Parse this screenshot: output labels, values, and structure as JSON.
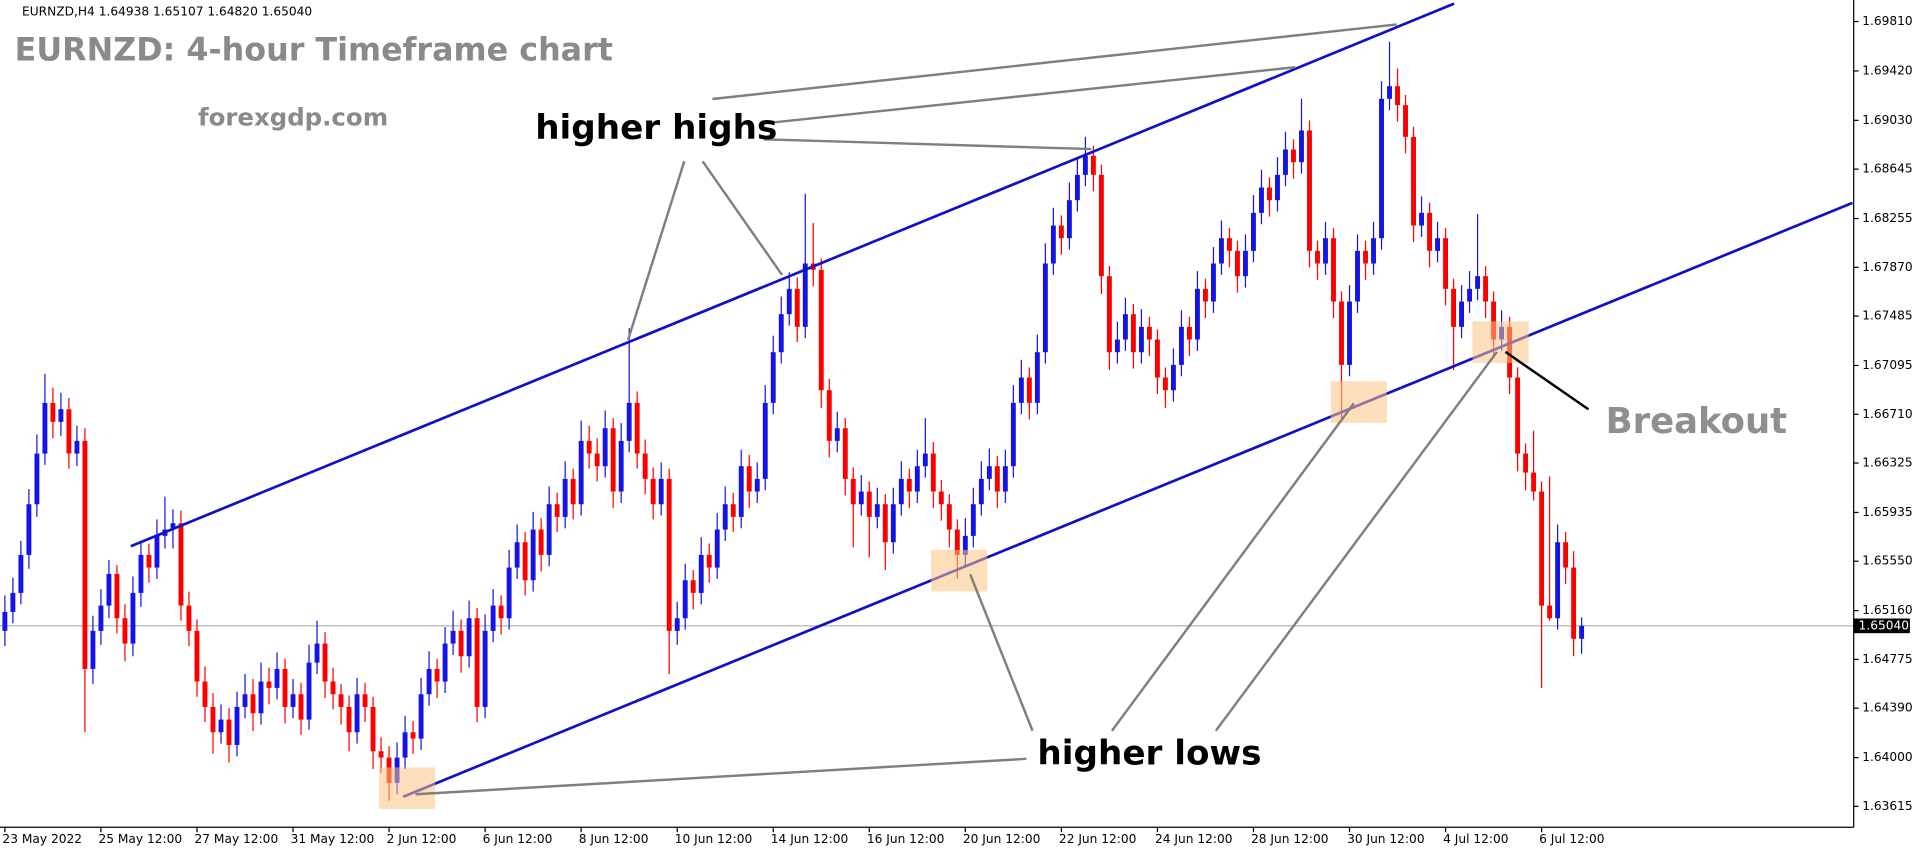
{
  "chart_data": {
    "type": "candlestick",
    "symbol_info": "EURNZD,H4 1.64938 1.65107 1.64820 1.65040",
    "title": "EURNZD: 4-hour Timeframe chart",
    "subtitle": "forexgdp.com",
    "annotations": [
      "higher highs",
      "higher lows",
      "Breakout"
    ],
    "up_color": "#1414e6",
    "down_color": "#ff0000",
    "grid": false,
    "ylim": [
      1.6345,
      1.6998
    ],
    "yticks": [
      {
        "value": 1.6981,
        "label": "1.69810"
      },
      {
        "value": 1.6942,
        "label": "1.69420"
      },
      {
        "value": 1.6903,
        "label": "1.69030"
      },
      1.68645,
      1.68255,
      {
        "value": 1.6787,
        "label": "1.67870"
      },
      1.67485,
      1.67095,
      {
        "value": 1.6671,
        "label": "1.66710"
      },
      1.66325,
      1.65935,
      {
        "value": 1.6555,
        "label": "1.65550"
      },
      {
        "value": 1.6516,
        "label": "1.65160"
      },
      1.64775,
      {
        "value": 1.6439,
        "label": "1.64390"
      },
      {
        "value": 1.64,
        "label": "1.64000"
      },
      1.63615
    ],
    "last_price": {
      "value": 1.6504,
      "label": "1.65040"
    },
    "categories": [
      "23 May 2022",
      null,
      null,
      null,
      null,
      null,
      null,
      null,
      null,
      null,
      null,
      null,
      "25 May 12:00",
      null,
      null,
      null,
      null,
      null,
      null,
      null,
      null,
      null,
      null,
      null,
      "27 May 12:00",
      null,
      null,
      null,
      null,
      null,
      null,
      null,
      null,
      null,
      null,
      null,
      "31 May 12:00",
      null,
      null,
      null,
      null,
      null,
      null,
      null,
      null,
      null,
      null,
      null,
      "2 Jun 12:00",
      null,
      null,
      null,
      null,
      null,
      null,
      null,
      null,
      null,
      null,
      null,
      "6 Jun 12:00",
      null,
      null,
      null,
      null,
      null,
      null,
      null,
      null,
      null,
      null,
      null,
      "8 Jun 12:00",
      null,
      null,
      null,
      null,
      null,
      null,
      null,
      null,
      null,
      null,
      null,
      "10 Jun 12:00",
      null,
      null,
      null,
      null,
      null,
      null,
      null,
      null,
      null,
      null,
      null,
      "14 Jun 12:00",
      null,
      null,
      null,
      null,
      null,
      null,
      null,
      null,
      null,
      null,
      null,
      "16 Jun 12:00",
      null,
      null,
      null,
      null,
      null,
      null,
      null,
      null,
      null,
      null,
      null,
      "20 Jun 12:00",
      null,
      null,
      null,
      null,
      null,
      null,
      null,
      null,
      null,
      null,
      null,
      "22 Jun 12:00",
      null,
      null,
      null,
      null,
      null,
      null,
      null,
      null,
      null,
      null,
      null,
      "24 Jun 12:00",
      null,
      null,
      null,
      null,
      null,
      null,
      null,
      null,
      null,
      null,
      null,
      "28 Jun 12:00",
      null,
      null,
      null,
      null,
      null,
      null,
      null,
      null,
      null,
      null,
      null,
      "30 Jun 12:00",
      null,
      null,
      null,
      null,
      null,
      null,
      null,
      null,
      null,
      null,
      null,
      "4 Jul 12:00",
      null,
      null,
      null,
      null,
      null,
      null,
      null,
      null,
      null,
      null,
      null,
      "6 Jul 12:00",
      null,
      null,
      null,
      null,
      null
    ],
    "ohlc": [
      [
        1.65,
        1.6528,
        1.6488,
        1.6515
      ],
      [
        1.6515,
        1.6542,
        1.6506,
        1.653
      ],
      [
        1.653,
        1.6571,
        1.6521,
        1.656
      ],
      [
        1.656,
        1.6612,
        1.6549,
        1.66
      ],
      [
        1.66,
        1.6655,
        1.659,
        1.664
      ],
      [
        1.664,
        1.6703,
        1.6631,
        1.668
      ],
      [
        1.668,
        1.6692,
        1.6652,
        1.6665
      ],
      [
        1.6665,
        1.6688,
        1.6654,
        1.6675
      ],
      [
        1.6675,
        1.6684,
        1.6628,
        1.664
      ],
      [
        1.664,
        1.6662,
        1.663,
        1.665
      ],
      [
        1.665,
        1.666,
        1.642,
        1.647
      ],
      [
        1.647,
        1.6512,
        1.6458,
        1.65
      ],
      [
        1.65,
        1.6533,
        1.6489,
        1.652
      ],
      [
        1.652,
        1.6556,
        1.651,
        1.6545
      ],
      [
        1.6545,
        1.6552,
        1.6498,
        1.651
      ],
      [
        1.651,
        1.6521,
        1.6476,
        1.649
      ],
      [
        1.649,
        1.6543,
        1.648,
        1.653
      ],
      [
        1.653,
        1.6571,
        1.6519,
        1.656
      ],
      [
        1.656,
        1.6569,
        1.6538,
        1.655
      ],
      [
        1.655,
        1.6588,
        1.6541,
        1.6575
      ],
      [
        1.6575,
        1.6606,
        1.6565,
        1.658
      ],
      [
        1.658,
        1.6596,
        1.6565,
        1.6585
      ],
      [
        1.6585,
        1.6595,
        1.6508,
        1.652
      ],
      [
        1.652,
        1.6531,
        1.6488,
        1.65
      ],
      [
        1.65,
        1.6509,
        1.6448,
        1.646
      ],
      [
        1.646,
        1.6472,
        1.6428,
        1.644
      ],
      [
        1.644,
        1.6451,
        1.6403,
        1.642
      ],
      [
        1.642,
        1.6442,
        1.6411,
        1.643
      ],
      [
        1.643,
        1.6439,
        1.6396,
        1.641
      ],
      [
        1.641,
        1.6452,
        1.6401,
        1.644
      ],
      [
        1.644,
        1.6466,
        1.6431,
        1.645
      ],
      [
        1.645,
        1.6462,
        1.6421,
        1.6435
      ],
      [
        1.6435,
        1.6475,
        1.6426,
        1.646
      ],
      [
        1.646,
        1.6471,
        1.6442,
        1.6455
      ],
      [
        1.6455,
        1.6483,
        1.6446,
        1.647
      ],
      [
        1.647,
        1.6478,
        1.6427,
        1.644
      ],
      [
        1.644,
        1.6462,
        1.6431,
        1.645
      ],
      [
        1.645,
        1.6459,
        1.6418,
        1.643
      ],
      [
        1.643,
        1.6489,
        1.6422,
        1.6475
      ],
      [
        1.6475,
        1.6508,
        1.6466,
        1.649
      ],
      [
        1.649,
        1.6499,
        1.6447,
        1.646
      ],
      [
        1.646,
        1.6471,
        1.6438,
        1.645
      ],
      [
        1.645,
        1.6458,
        1.6426,
        1.644
      ],
      [
        1.644,
        1.6449,
        1.6405,
        1.642
      ],
      [
        1.642,
        1.6463,
        1.6411,
        1.645
      ],
      [
        1.645,
        1.6459,
        1.6428,
        1.644
      ],
      [
        1.644,
        1.6448,
        1.6391,
        1.6405
      ],
      [
        1.6405,
        1.6416,
        1.6388,
        1.64
      ],
      [
        1.64,
        1.6409,
        1.6366,
        1.638
      ],
      [
        1.638,
        1.6412,
        1.6371,
        1.64
      ],
      [
        1.64,
        1.6433,
        1.6391,
        1.642
      ],
      [
        1.642,
        1.6429,
        1.6403,
        1.6415
      ],
      [
        1.6415,
        1.6463,
        1.6406,
        1.645
      ],
      [
        1.645,
        1.6484,
        1.6441,
        1.647
      ],
      [
        1.647,
        1.6478,
        1.6447,
        1.646
      ],
      [
        1.646,
        1.6503,
        1.6451,
        1.649
      ],
      [
        1.649,
        1.6516,
        1.6481,
        1.65
      ],
      [
        1.65,
        1.6509,
        1.6467,
        1.648
      ],
      [
        1.648,
        1.6524,
        1.6471,
        1.651
      ],
      [
        1.651,
        1.6518,
        1.6428,
        1.644
      ],
      [
        1.644,
        1.6513,
        1.6431,
        1.65
      ],
      [
        1.65,
        1.6533,
        1.6491,
        1.652
      ],
      [
        1.652,
        1.6528,
        1.6497,
        1.651
      ],
      [
        1.651,
        1.6564,
        1.6501,
        1.655
      ],
      [
        1.655,
        1.6584,
        1.6541,
        1.657
      ],
      [
        1.657,
        1.6578,
        1.6528,
        1.654
      ],
      [
        1.654,
        1.6594,
        1.6531,
        1.658
      ],
      [
        1.658,
        1.6589,
        1.6547,
        1.656
      ],
      [
        1.656,
        1.6614,
        1.6551,
        1.66
      ],
      [
        1.66,
        1.6609,
        1.6578,
        1.659
      ],
      [
        1.659,
        1.6634,
        1.6581,
        1.662
      ],
      [
        1.662,
        1.6628,
        1.6588,
        1.66
      ],
      [
        1.66,
        1.6666,
        1.6591,
        1.665
      ],
      [
        1.665,
        1.6662,
        1.6628,
        1.664
      ],
      [
        1.664,
        1.6652,
        1.6618,
        1.663
      ],
      [
        1.663,
        1.6674,
        1.6621,
        1.666
      ],
      [
        1.666,
        1.6668,
        1.6597,
        1.661
      ],
      [
        1.661,
        1.6664,
        1.6601,
        1.665
      ],
      [
        1.665,
        1.6739,
        1.6641,
        1.668
      ],
      [
        1.668,
        1.6689,
        1.6628,
        1.664
      ],
      [
        1.664,
        1.6651,
        1.6608,
        1.662
      ],
      [
        1.662,
        1.6629,
        1.6588,
        1.66
      ],
      [
        1.66,
        1.6633,
        1.6591,
        1.662
      ],
      [
        1.662,
        1.6628,
        1.6466,
        1.65
      ],
      [
        1.65,
        1.6523,
        1.6489,
        1.651
      ],
      [
        1.651,
        1.6553,
        1.6501,
        1.654
      ],
      [
        1.654,
        1.6548,
        1.6517,
        1.653
      ],
      [
        1.653,
        1.6574,
        1.6521,
        1.656
      ],
      [
        1.656,
        1.6569,
        1.6538,
        1.655
      ],
      [
        1.655,
        1.6593,
        1.6541,
        1.658
      ],
      [
        1.658,
        1.6614,
        1.6571,
        1.66
      ],
      [
        1.66,
        1.6609,
        1.6578,
        1.659
      ],
      [
        1.659,
        1.6643,
        1.6581,
        1.663
      ],
      [
        1.663,
        1.6639,
        1.6597,
        1.661
      ],
      [
        1.661,
        1.6633,
        1.6601,
        1.662
      ],
      [
        1.662,
        1.6694,
        1.6611,
        1.668
      ],
      [
        1.668,
        1.6733,
        1.6671,
        1.672
      ],
      [
        1.672,
        1.6764,
        1.6711,
        1.675
      ],
      [
        1.675,
        1.6783,
        1.6741,
        1.677
      ],
      [
        1.677,
        1.6779,
        1.6728,
        1.674
      ],
      [
        1.674,
        1.6845,
        1.6731,
        1.679
      ],
      [
        1.679,
        1.6822,
        1.6772,
        1.6785
      ],
      [
        1.6785,
        1.6794,
        1.6676,
        1.669
      ],
      [
        1.669,
        1.6699,
        1.6637,
        1.665
      ],
      [
        1.665,
        1.6673,
        1.6641,
        1.666
      ],
      [
        1.666,
        1.6668,
        1.6607,
        1.662
      ],
      [
        1.662,
        1.6629,
        1.6566,
        1.66
      ],
      [
        1.66,
        1.6623,
        1.6591,
        1.661
      ],
      [
        1.661,
        1.6618,
        1.6558,
        1.659
      ],
      [
        1.659,
        1.6613,
        1.6581,
        1.66
      ],
      [
        1.66,
        1.6608,
        1.6548,
        1.657
      ],
      [
        1.657,
        1.6613,
        1.6561,
        1.66
      ],
      [
        1.66,
        1.6634,
        1.6591,
        1.662
      ],
      [
        1.662,
        1.6628,
        1.6597,
        1.661
      ],
      [
        1.661,
        1.6643,
        1.6601,
        1.663
      ],
      [
        1.663,
        1.6668,
        1.6621,
        1.664
      ],
      [
        1.664,
        1.6649,
        1.6597,
        1.661
      ],
      [
        1.661,
        1.6619,
        1.6587,
        1.66
      ],
      [
        1.66,
        1.6608,
        1.6566,
        1.658
      ],
      [
        1.658,
        1.6588,
        1.6541,
        1.656
      ],
      [
        1.656,
        1.6589,
        1.6551,
        1.6575
      ],
      [
        1.6575,
        1.6613,
        1.6566,
        1.66
      ],
      [
        1.66,
        1.6634,
        1.6591,
        1.662
      ],
      [
        1.662,
        1.6644,
        1.6611,
        1.663
      ],
      [
        1.663,
        1.6638,
        1.6597,
        1.661
      ],
      [
        1.661,
        1.6643,
        1.6601,
        1.663
      ],
      [
        1.663,
        1.6694,
        1.6621,
        1.668
      ],
      [
        1.668,
        1.6714,
        1.6671,
        1.67
      ],
      [
        1.67,
        1.6708,
        1.6667,
        1.668
      ],
      [
        1.668,
        1.6734,
        1.6671,
        1.672
      ],
      [
        1.672,
        1.6806,
        1.6711,
        1.679
      ],
      [
        1.679,
        1.6834,
        1.6781,
        1.682
      ],
      [
        1.682,
        1.6828,
        1.6797,
        1.681
      ],
      [
        1.681,
        1.6854,
        1.6801,
        1.684
      ],
      [
        1.684,
        1.6874,
        1.6831,
        1.686
      ],
      [
        1.686,
        1.689,
        1.6851,
        1.6875
      ],
      [
        1.6875,
        1.6883,
        1.6847,
        1.686
      ],
      [
        1.686,
        1.6868,
        1.6766,
        1.678
      ],
      [
        1.678,
        1.6788,
        1.6706,
        1.672
      ],
      [
        1.672,
        1.6744,
        1.6711,
        1.673
      ],
      [
        1.673,
        1.6763,
        1.6721,
        1.675
      ],
      [
        1.675,
        1.6758,
        1.6707,
        1.672
      ],
      [
        1.672,
        1.6754,
        1.6711,
        1.674
      ],
      [
        1.674,
        1.6748,
        1.6717,
        1.673
      ],
      [
        1.673,
        1.6738,
        1.6687,
        1.67
      ],
      [
        1.67,
        1.6708,
        1.6676,
        1.669
      ],
      [
        1.669,
        1.6723,
        1.6681,
        1.671
      ],
      [
        1.671,
        1.6753,
        1.6701,
        1.674
      ],
      [
        1.674,
        1.6748,
        1.6717,
        1.673
      ],
      [
        1.673,
        1.6784,
        1.6721,
        1.677
      ],
      [
        1.677,
        1.6778,
        1.6747,
        1.676
      ],
      [
        1.676,
        1.6803,
        1.6751,
        1.679
      ],
      [
        1.679,
        1.6824,
        1.6781,
        1.681
      ],
      [
        1.681,
        1.6818,
        1.6787,
        1.68
      ],
      [
        1.68,
        1.6808,
        1.6767,
        1.678
      ],
      [
        1.678,
        1.6813,
        1.6771,
        1.68
      ],
      [
        1.68,
        1.6844,
        1.6791,
        1.683
      ],
      [
        1.683,
        1.6864,
        1.6821,
        1.685
      ],
      [
        1.685,
        1.6858,
        1.6827,
        1.684
      ],
      [
        1.684,
        1.6874,
        1.6831,
        1.686
      ],
      [
        1.686,
        1.6894,
        1.6851,
        1.688
      ],
      [
        1.688,
        1.6888,
        1.6857,
        1.687
      ],
      [
        1.687,
        1.692,
        1.6861,
        1.6895
      ],
      [
        1.6895,
        1.6903,
        1.6787,
        1.68
      ],
      [
        1.68,
        1.6808,
        1.6777,
        1.679
      ],
      [
        1.679,
        1.6823,
        1.6781,
        1.681
      ],
      [
        1.681,
        1.6818,
        1.6747,
        1.676
      ],
      [
        1.676,
        1.6768,
        1.6668,
        1.671
      ],
      [
        1.671,
        1.6773,
        1.6701,
        1.676
      ],
      [
        1.676,
        1.6813,
        1.6751,
        1.68
      ],
      [
        1.68,
        1.6808,
        1.6777,
        1.679
      ],
      [
        1.679,
        1.6823,
        1.6781,
        1.681
      ],
      [
        1.681,
        1.6934,
        1.6801,
        1.692
      ],
      [
        1.692,
        1.6965,
        1.6911,
        1.693
      ],
      [
        1.693,
        1.6944,
        1.6902,
        1.6915
      ],
      [
        1.6915,
        1.6923,
        1.6877,
        1.689
      ],
      [
        1.689,
        1.6898,
        1.6807,
        1.682
      ],
      [
        1.682,
        1.6843,
        1.6811,
        1.683
      ],
      [
        1.683,
        1.6838,
        1.6787,
        1.68
      ],
      [
        1.68,
        1.6823,
        1.6791,
        1.681
      ],
      [
        1.681,
        1.6818,
        1.6757,
        1.677
      ],
      [
        1.677,
        1.6778,
        1.6706,
        1.674
      ],
      [
        1.674,
        1.6773,
        1.6731,
        1.676
      ],
      [
        1.676,
        1.6784,
        1.6751,
        1.677
      ],
      [
        1.677,
        1.6829,
        1.6761,
        1.678
      ],
      [
        1.678,
        1.6788,
        1.6747,
        1.676
      ],
      [
        1.676,
        1.6768,
        1.6716,
        1.673
      ],
      [
        1.673,
        1.6753,
        1.6721,
        1.674
      ],
      [
        1.674,
        1.6748,
        1.6687,
        1.67
      ],
      [
        1.67,
        1.6708,
        1.6626,
        1.664
      ],
      [
        1.664,
        1.6648,
        1.6611,
        1.6625
      ],
      [
        1.6625,
        1.6658,
        1.6603,
        1.661
      ],
      [
        1.661,
        1.6618,
        1.6455,
        1.652
      ],
      [
        1.652,
        1.6622,
        1.6508,
        1.651
      ],
      [
        1.651,
        1.6584,
        1.6501,
        1.657
      ],
      [
        1.657,
        1.6578,
        1.6537,
        1.655
      ],
      [
        1.655,
        1.6563,
        1.648,
        1.64938
      ],
      [
        1.64938,
        1.65107,
        1.6482,
        1.6504
      ]
    ]
  }
}
